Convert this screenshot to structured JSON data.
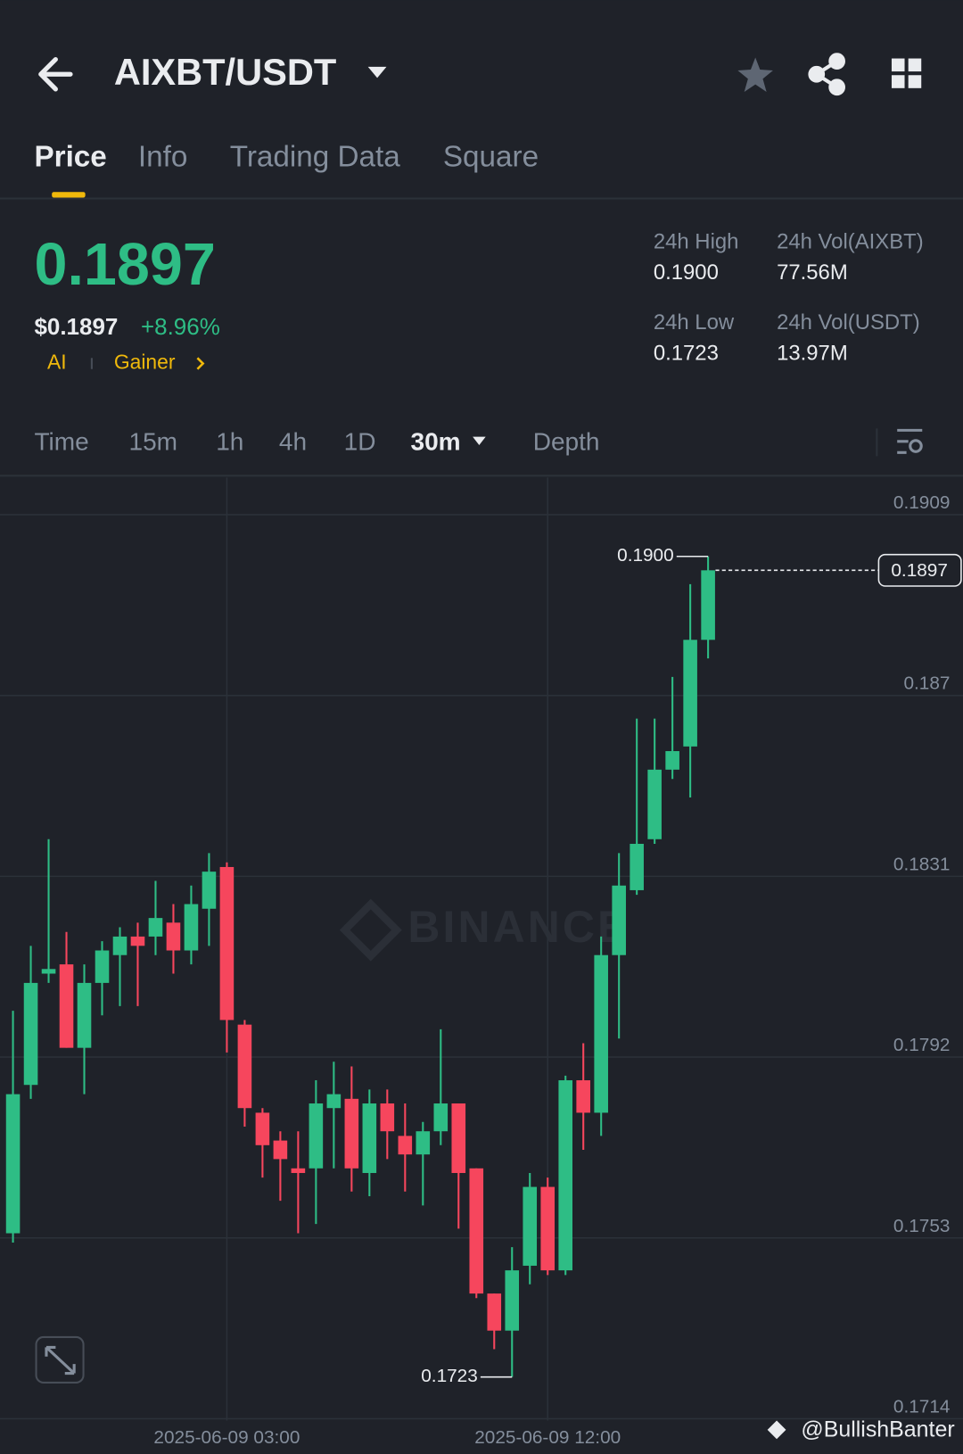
{
  "header": {
    "pair": "AIXBT/USDT"
  },
  "tabs": [
    "Price",
    "Info",
    "Trading Data",
    "Square"
  ],
  "ticker": {
    "price": "0.1897",
    "usd_price": "$0.1897",
    "change": "+8.96%",
    "tags": [
      "AI",
      "Gainer"
    ]
  },
  "stats": [
    {
      "label": "24h High",
      "value": "0.1900"
    },
    {
      "label": "24h Vol(AIXBT)",
      "value": "77.56M"
    },
    {
      "label": "24h Low",
      "value": "0.1723"
    },
    {
      "label": "24h Vol(USDT)",
      "value": "13.97M"
    }
  ],
  "intervals": [
    "Time",
    "15m",
    "1h",
    "4h",
    "1D",
    "30m",
    "Depth"
  ],
  "chart_data": {
    "type": "candlestick",
    "watermark": "BINANCE",
    "categories": [
      null,
      null,
      null,
      null,
      null,
      null,
      null,
      null,
      null,
      null,
      null,
      null,
      "2025-06-09 03:00",
      null,
      null,
      null,
      null,
      null,
      null,
      null,
      null,
      null,
      null,
      null,
      null,
      null,
      null,
      null,
      null,
      null,
      "2025-06-09 12:00",
      null,
      null,
      null,
      null,
      null,
      null,
      null,
      null,
      null
    ],
    "open": [
      0.1754,
      0.1786,
      0.181,
      0.1812,
      0.1794,
      0.1808,
      0.1814,
      0.1818,
      0.1818,
      0.1821,
      0.1815,
      0.1824,
      0.1833,
      0.1799,
      0.178,
      0.1774,
      0.1768,
      0.1768,
      0.1781,
      0.1783,
      0.1767,
      0.1782,
      0.1775,
      0.1771,
      0.1776,
      0.1782,
      0.1768,
      0.1741,
      0.1733,
      0.1747,
      0.1764,
      0.1746,
      0.1787,
      0.178,
      0.1814,
      0.1828,
      0.1839,
      0.1854,
      0.1859,
      0.1882
    ],
    "high": [
      0.1802,
      0.1816,
      0.1839,
      0.1819,
      0.1812,
      0.1817,
      0.182,
      0.1821,
      0.183,
      0.1825,
      0.1829,
      0.1836,
      0.1834,
      0.18,
      0.1781,
      0.1776,
      0.1776,
      0.1787,
      0.1791,
      0.179,
      0.1785,
      0.1785,
      0.1782,
      0.1778,
      0.1798,
      0.1782,
      0.1768,
      0.1741,
      0.1751,
      0.1767,
      0.1766,
      0.1788,
      0.1795,
      0.1818,
      0.1836,
      0.1865,
      0.1865,
      0.1874,
      0.1894,
      0.19
    ],
    "low": [
      0.1752,
      0.1783,
      0.1808,
      0.1794,
      0.1784,
      0.1801,
      0.1803,
      0.1803,
      0.1814,
      0.181,
      0.1812,
      0.1816,
      0.1793,
      0.1777,
      0.1766,
      0.1761,
      0.1754,
      0.1756,
      0.1768,
      0.1763,
      0.1762,
      0.177,
      0.1763,
      0.176,
      0.1773,
      0.1755,
      0.174,
      0.1729,
      0.1723,
      0.1743,
      0.1745,
      0.1745,
      0.1772,
      0.1775,
      0.1796,
      0.1827,
      0.1838,
      0.1852,
      0.1848,
      0.1878
    ],
    "close": [
      0.1784,
      0.1808,
      0.1811,
      0.1794,
      0.1808,
      0.1815,
      0.1818,
      0.1816,
      0.1822,
      0.1815,
      0.1825,
      0.1832,
      0.18,
      0.1781,
      0.1773,
      0.177,
      0.1767,
      0.1782,
      0.1784,
      0.1768,
      0.1782,
      0.1776,
      0.1771,
      0.1776,
      0.1782,
      0.1767,
      0.1741,
      0.1733,
      0.1746,
      0.1764,
      0.1746,
      0.1787,
      0.178,
      0.1814,
      0.1829,
      0.1838,
      0.1854,
      0.1858,
      0.1882,
      0.1897
    ],
    "up_color": "#2ebd85",
    "down_color": "#f6465d",
    "ylim": [
      0.1714,
      0.1917
    ],
    "yticks": [
      0.1909,
      0.187,
      0.1831,
      0.1792,
      0.1753,
      0.1714
    ],
    "grid": true,
    "max_label": "0.1900",
    "min_label": "0.1723",
    "last_label": "0.1897"
  },
  "footer": {
    "watermark": "@BullishBanter"
  }
}
